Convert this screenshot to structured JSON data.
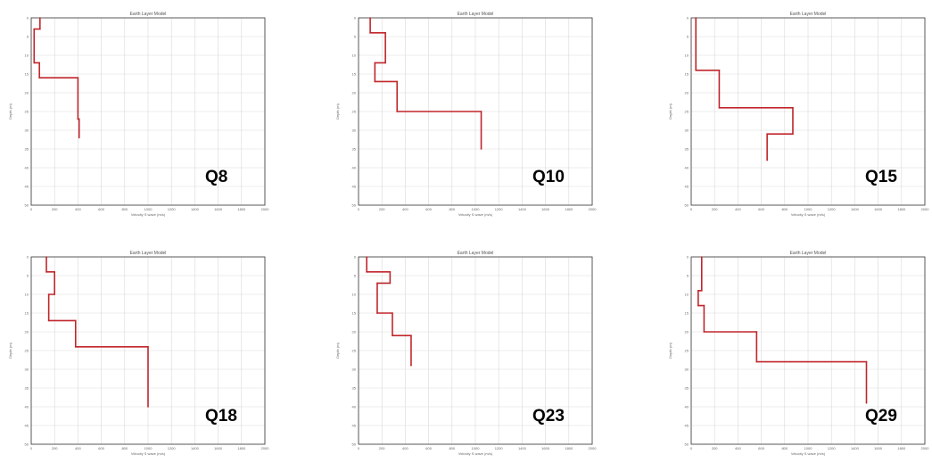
{
  "chart_data": [
    {
      "type": "line",
      "label": "Q8",
      "title": "Earth Layer Model",
      "xlabel": "Velocity S wave (m/s)",
      "ylabel": "Depth (m)",
      "xlim": [
        0,
        2000
      ],
      "ylim": [
        0,
        50
      ],
      "x_ticks": [
        "0",
        "200",
        "400",
        "600",
        "800",
        "1000",
        "1200",
        "1400",
        "1600",
        "1800",
        "2000"
      ],
      "y_ticks": [
        "0",
        "5",
        "10",
        "15",
        "20",
        "25",
        "30",
        "35",
        "40",
        "45",
        "50"
      ],
      "grid": true,
      "line_color": "#c0262b",
      "points": [
        [
          75,
          0
        ],
        [
          75,
          3
        ],
        [
          25,
          3
        ],
        [
          25,
          12
        ],
        [
          70,
          12
        ],
        [
          70,
          16
        ],
        [
          400,
          16
        ],
        [
          400,
          27
        ],
        [
          410,
          27
        ],
        [
          410,
          32
        ]
      ]
    },
    {
      "type": "line",
      "label": "Q10",
      "title": "Earth Layer Model",
      "xlabel": "Velocity S wave (m/s)",
      "ylabel": "Depth (m)",
      "xlim": [
        0,
        2000
      ],
      "ylim": [
        0,
        50
      ],
      "x_ticks": [
        "0",
        "200",
        "400",
        "600",
        "800",
        "1000",
        "1200",
        "1400",
        "1600",
        "1800",
        "2000"
      ],
      "y_ticks": [
        "0",
        "5",
        "10",
        "15",
        "20",
        "25",
        "30",
        "35",
        "40",
        "45",
        "50"
      ],
      "grid": true,
      "line_color": "#c0262b",
      "points": [
        [
          100,
          0
        ],
        [
          100,
          4
        ],
        [
          230,
          4
        ],
        [
          230,
          12
        ],
        [
          140,
          12
        ],
        [
          140,
          17
        ],
        [
          330,
          17
        ],
        [
          330,
          25
        ],
        [
          1050,
          25
        ],
        [
          1050,
          35
        ]
      ]
    },
    {
      "type": "line",
      "label": "Q15",
      "title": "Earth Layer Model",
      "xlabel": "Velocity S wave (m/s)",
      "ylabel": "Depth (m)",
      "xlim": [
        0,
        2000
      ],
      "ylim": [
        0,
        50
      ],
      "x_ticks": [
        "0",
        "200",
        "400",
        "600",
        "800",
        "1000",
        "1200",
        "1400",
        "1600",
        "1800",
        "2000"
      ],
      "y_ticks": [
        "0",
        "5",
        "10",
        "15",
        "20",
        "25",
        "30",
        "35",
        "40",
        "45",
        "50"
      ],
      "grid": true,
      "line_color": "#c0262b",
      "points": [
        [
          40,
          0
        ],
        [
          40,
          14
        ],
        [
          240,
          14
        ],
        [
          240,
          24
        ],
        [
          870,
          24
        ],
        [
          870,
          31
        ],
        [
          650,
          31
        ],
        [
          650,
          38
        ]
      ]
    },
    {
      "type": "line",
      "label": "Q18",
      "title": "Earth Layer Model",
      "xlabel": "Velocity S wave (m/s)",
      "ylabel": "Depth (m)",
      "xlim": [
        0,
        2000
      ],
      "ylim": [
        0,
        50
      ],
      "x_ticks": [
        "0",
        "200",
        "400",
        "600",
        "800",
        "1000",
        "1200",
        "1400",
        "1600",
        "1800",
        "2000"
      ],
      "y_ticks": [
        "0",
        "5",
        "10",
        "15",
        "20",
        "25",
        "30",
        "35",
        "40",
        "45",
        "50"
      ],
      "grid": true,
      "line_color": "#c0262b",
      "points": [
        [
          130,
          0
        ],
        [
          130,
          4
        ],
        [
          200,
          4
        ],
        [
          200,
          10
        ],
        [
          150,
          10
        ],
        [
          150,
          17
        ],
        [
          380,
          17
        ],
        [
          380,
          24
        ],
        [
          1000,
          24
        ],
        [
          1000,
          40
        ]
      ]
    },
    {
      "type": "line",
      "label": "Q23",
      "title": "Earth Layer Model",
      "xlabel": "Velocity S wave (m/s)",
      "ylabel": "Depth (m)",
      "xlim": [
        0,
        2000
      ],
      "ylim": [
        0,
        50
      ],
      "x_ticks": [
        "0",
        "200",
        "400",
        "600",
        "800",
        "1000",
        "1200",
        "1400",
        "1600",
        "1800",
        "2000"
      ],
      "y_ticks": [
        "0",
        "5",
        "10",
        "15",
        "20",
        "25",
        "30",
        "35",
        "40",
        "45",
        "50"
      ],
      "grid": true,
      "line_color": "#c0262b",
      "points": [
        [
          70,
          0
        ],
        [
          70,
          4
        ],
        [
          270,
          4
        ],
        [
          270,
          7
        ],
        [
          160,
          7
        ],
        [
          160,
          15
        ],
        [
          290,
          15
        ],
        [
          290,
          21
        ],
        [
          450,
          21
        ],
        [
          450,
          29
        ]
      ]
    },
    {
      "type": "line",
      "label": "Q29",
      "title": "Earth Layer Model",
      "xlabel": "Velocity S wave (m/s)",
      "ylabel": "Depth (m)",
      "xlim": [
        0,
        2000
      ],
      "ylim": [
        0,
        50
      ],
      "x_ticks": [
        "0",
        "200",
        "400",
        "600",
        "800",
        "1000",
        "1200",
        "1400",
        "1600",
        "1800",
        "2000"
      ],
      "y_ticks": [
        "0",
        "5",
        "10",
        "15",
        "20",
        "25",
        "30",
        "35",
        "40",
        "45",
        "50"
      ],
      "grid": true,
      "line_color": "#c0262b",
      "points": [
        [
          90,
          0
        ],
        [
          90,
          9
        ],
        [
          60,
          9
        ],
        [
          60,
          13
        ],
        [
          110,
          13
        ],
        [
          110,
          20
        ],
        [
          560,
          20
        ],
        [
          560,
          28
        ],
        [
          1500,
          28
        ],
        [
          1500,
          39
        ]
      ]
    }
  ]
}
